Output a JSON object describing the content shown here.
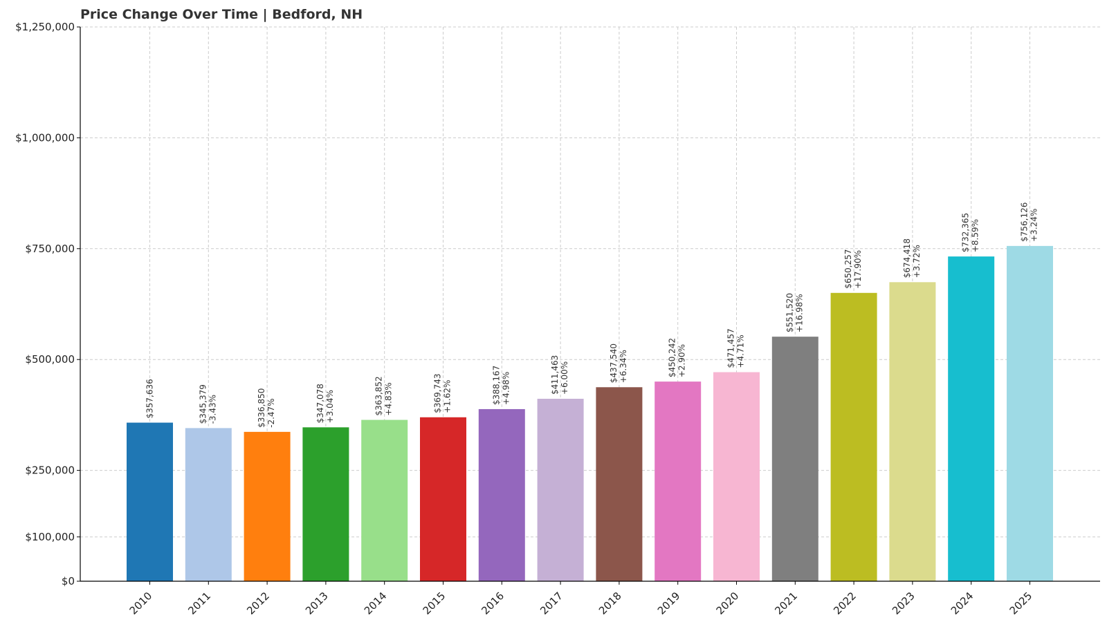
{
  "chart_data": {
    "type": "bar",
    "title": "Price Change Over Time | Bedford, NH",
    "xlabel": "",
    "ylabel": "",
    "ylim": [
      0,
      1250000
    ],
    "yticks": [
      0,
      100000,
      250000,
      500000,
      750000,
      1000000,
      1250000
    ],
    "ytick_labels": [
      "$0",
      "$100,000",
      "$250,000",
      "$500,000",
      "$750,000",
      "$1,000,000",
      "$1,250,000"
    ],
    "grid": true,
    "categories": [
      "2010",
      "2011",
      "2012",
      "2013",
      "2014",
      "2015",
      "2016",
      "2017",
      "2018",
      "2019",
      "2020",
      "2021",
      "2022",
      "2023",
      "2024",
      "2025"
    ],
    "values": [
      357636,
      345379,
      336850,
      347078,
      363852,
      369743,
      388167,
      411463,
      437540,
      450242,
      471457,
      551520,
      650257,
      674418,
      732365,
      756126
    ],
    "value_labels": [
      "$357,636",
      "$345,379",
      "$336,850",
      "$347,078",
      "$363,852",
      "$369,743",
      "$388,167",
      "$411,463",
      "$437,540",
      "$450,242",
      "$471,457",
      "$551,520",
      "$650,257",
      "$674,418",
      "$732,365",
      "$756,126"
    ],
    "change_labels": [
      "",
      "-3.43%",
      "-2.47%",
      "+3.04%",
      "+4.83%",
      "+1.62%",
      "+4.98%",
      "+6.00%",
      "+6.34%",
      "+2.90%",
      "+4.71%",
      "+16.98%",
      "+17.90%",
      "+3.72%",
      "+8.59%",
      "+3.24%"
    ],
    "colors": [
      "#1f77b4",
      "#aec7e8",
      "#ff7f0e",
      "#2ca02c",
      "#98df8a",
      "#d62728",
      "#9467bd",
      "#c5b0d5",
      "#8c564b",
      "#e377c2",
      "#f7b6d2",
      "#7f7f7f",
      "#bcbd22",
      "#dbdb8d",
      "#17becf",
      "#9edae5"
    ]
  }
}
